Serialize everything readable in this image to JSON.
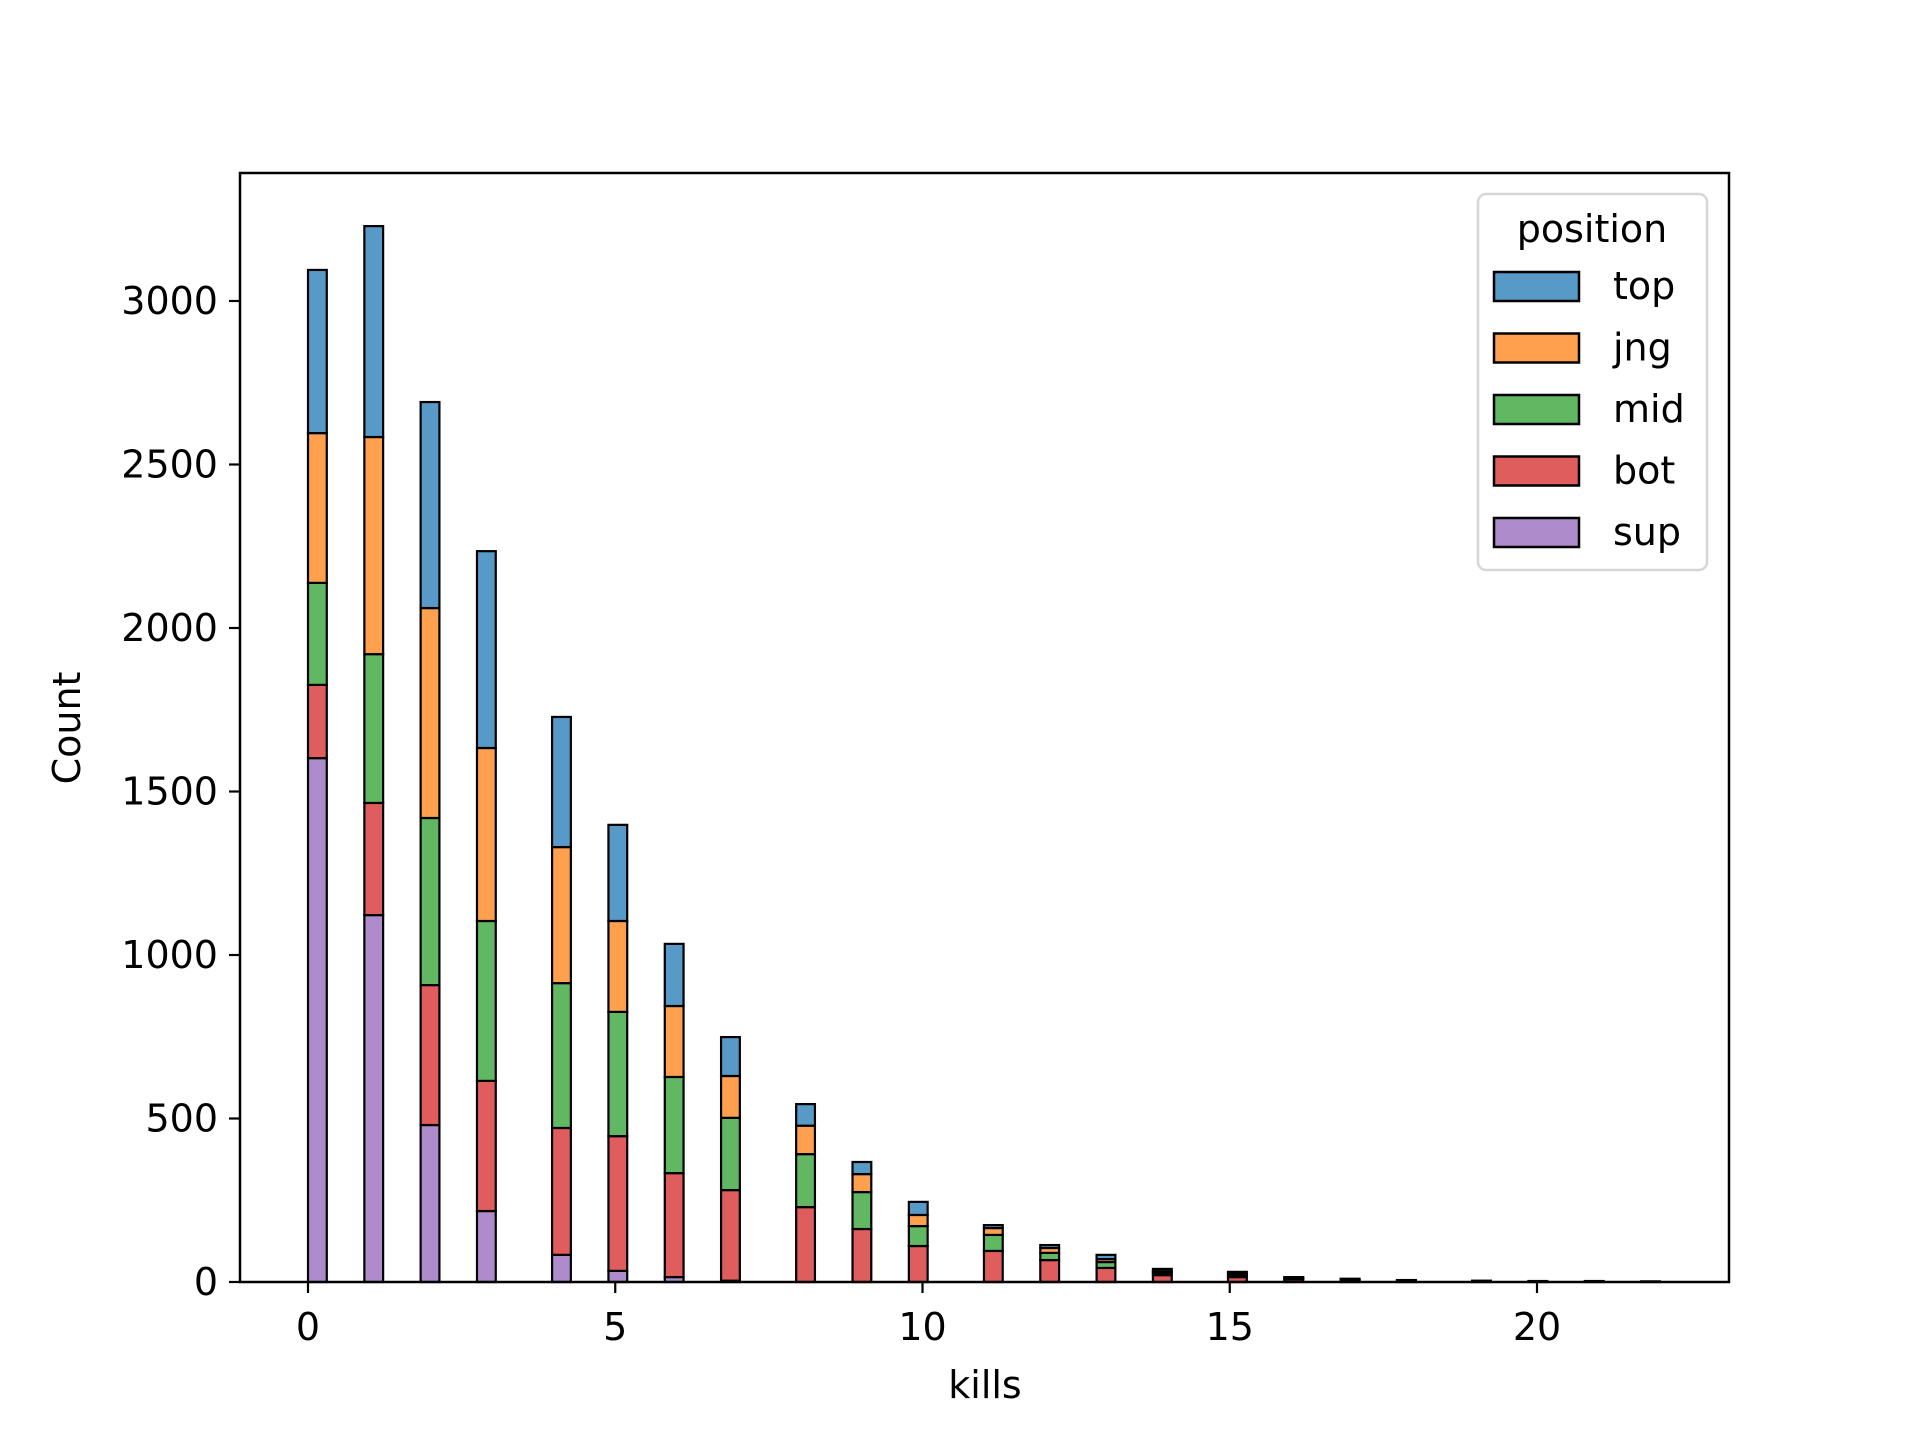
{
  "chart_data": {
    "type": "bar",
    "subtype": "stacked-histogram",
    "title": "",
    "xlabel": "kills",
    "ylabel": "Count",
    "xlim": [
      -1.1,
      23.1
    ],
    "ylim": [
      0,
      3390
    ],
    "xticks": [
      0,
      5,
      10,
      15,
      20
    ],
    "yticks": [
      0,
      500,
      1000,
      1500,
      2000,
      2500,
      3000
    ],
    "grid": false,
    "bin_width": 0.3056,
    "legend": {
      "title": "position",
      "position": "upper right",
      "entries": [
        "top",
        "jng",
        "mid",
        "bot",
        "sup"
      ]
    },
    "colors": {
      "top": "#5799c7",
      "jng": "#ffa04f",
      "mid": "#62b862",
      "bot": "#e05d5e",
      "sup": "#ae8ccb"
    },
    "stack_order_bottom_to_top": [
      "sup",
      "bot",
      "mid",
      "jng",
      "top"
    ],
    "categories": [
      0,
      1,
      2,
      3,
      4,
      5,
      6,
      7,
      8,
      9,
      10,
      11,
      12,
      13,
      14,
      15,
      16,
      17,
      18,
      19,
      20,
      21,
      22
    ],
    "bin_left_edges": [
      0.0,
      0.917,
      1.833,
      2.75,
      3.972,
      4.889,
      5.806,
      6.722,
      7.944,
      8.861,
      9.778,
      11.0,
      11.917,
      12.833,
      13.75,
      14.972,
      15.889,
      16.806,
      17.722,
      18.944,
      19.861,
      20.778,
      21.694
    ],
    "series": [
      {
        "name": "sup",
        "values": [
          1602,
          1122,
          480,
          217,
          83,
          34,
          15,
          4,
          0,
          0,
          0,
          0,
          0,
          0,
          0,
          0,
          0,
          0,
          0,
          0,
          0,
          0,
          0
        ]
      },
      {
        "name": "bot",
        "values": [
          224,
          343,
          428,
          398,
          388,
          412,
          318,
          277,
          229,
          162,
          110,
          95,
          67,
          43,
          21,
          15,
          8,
          5,
          3,
          2,
          1,
          1,
          1
        ]
      },
      {
        "name": "mid",
        "values": [
          312,
          455,
          511,
          489,
          443,
          380,
          294,
          221,
          162,
          113,
          61,
          49,
          22,
          18,
          7,
          7,
          3,
          2,
          1,
          1,
          1,
          1,
          0
        ]
      },
      {
        "name": "jng",
        "values": [
          458,
          664,
          642,
          529,
          416,
          278,
          217,
          128,
          87,
          55,
          34,
          21,
          15,
          9,
          5,
          4,
          2,
          1,
          1,
          0,
          0,
          0,
          1
        ]
      },
      {
        "name": "top",
        "values": [
          499,
          645,
          630,
          602,
          398,
          294,
          190,
          119,
          66,
          37,
          40,
          9,
          9,
          13,
          7,
          5,
          2,
          2,
          1,
          1,
          1,
          1,
          0
        ]
      }
    ],
    "totals": [
      3095,
      3229,
      2691,
      2235,
      1728,
      1398,
      1034,
      749,
      544,
      367,
      245,
      174,
      113,
      83,
      40,
      31,
      15,
      10,
      6,
      4,
      3,
      3,
      2
    ]
  }
}
